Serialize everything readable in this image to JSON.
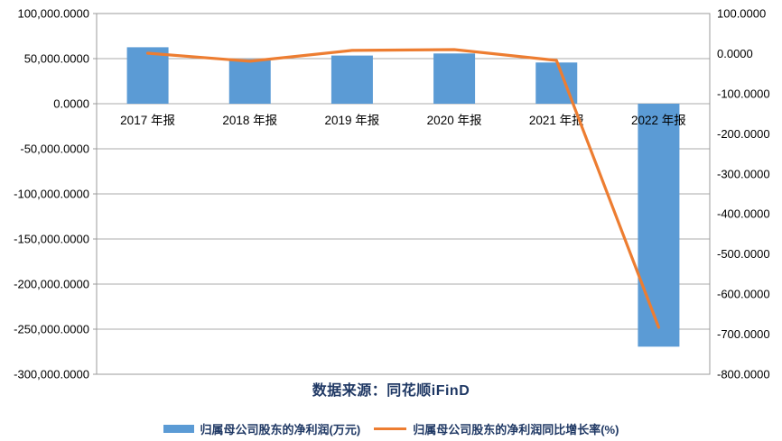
{
  "chart_data": {
    "type": "combo-bar-line",
    "title": "",
    "categories": [
      "2017 年报",
      "2018 年报",
      "2019 年报",
      "2020 年报",
      "2021 年报",
      "2022 年报"
    ],
    "series": [
      {
        "name": "归属母公司股东的净利润(万元)",
        "type": "bar",
        "axis": "left",
        "color": "#5B9BD5",
        "values": [
          62600,
          49400,
          53400,
          55700,
          45700,
          -269400
        ]
      },
      {
        "name": "归属母公司股东的净利润同比增长率(%)",
        "type": "line",
        "axis": "right",
        "color": "#ED7D31",
        "values": [
          1,
          -19,
          8,
          10,
          -17,
          -683
        ]
      }
    ],
    "left_axis": {
      "min": -300000,
      "max": 100000,
      "step": 50000,
      "tick_labels": [
        "100,000.0000",
        "50,000.0000",
        "0.0000",
        "-50,000.0000",
        "-100,000.0000",
        "-150,000.0000",
        "-200,000.0000",
        "-250,000.0000",
        "-300,000.0000"
      ]
    },
    "right_axis": {
      "min": -800,
      "max": 100,
      "step": 100,
      "tick_labels": [
        "100.0000",
        "0.0000",
        "-100.0000",
        "-200.0000",
        "-300.0000",
        "-400.0000",
        "-500.0000",
        "-600.0000",
        "-700.0000",
        "-800.0000"
      ]
    },
    "grid": {
      "horizontal": true,
      "follows": "left-axis"
    },
    "legend_position": "bottom"
  },
  "footer": {
    "source_caption": "数据来源：同花顺iFinD"
  },
  "legend": {
    "items": [
      {
        "label": "归属母公司股东的净利润(万元)",
        "marker": "bar-swatch",
        "color": "#5B9BD5"
      },
      {
        "label": "归属母公司股东的净利润同比增长率(%)",
        "marker": "line-swatch",
        "color": "#ED7D31"
      }
    ]
  },
  "colors": {
    "bar": "#5B9BD5",
    "line": "#ED7D31",
    "navy_text": "#1F3864",
    "axis_text": "#000000",
    "gridline": "#ABABAB",
    "plot_border": "#9B9B9B"
  }
}
